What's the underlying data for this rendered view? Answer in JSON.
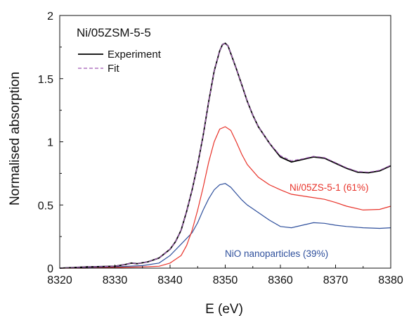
{
  "chart_data": {
    "type": "line",
    "title": "Ni/05ZSM-5-5",
    "xlabel": "E (eV)",
    "ylabel": "Normalised absorption",
    "xlim": [
      8320,
      8380
    ],
    "ylim": [
      0,
      2
    ],
    "xticks": [
      8320,
      8330,
      8340,
      8350,
      8360,
      8370,
      8380
    ],
    "xtick_labels": [
      "8320",
      "8330",
      "8340",
      "8350",
      "8360",
      "8370",
      "8380"
    ],
    "yticks": [
      0,
      0.5,
      1,
      1.5,
      2
    ],
    "ytick_labels": [
      "0",
      "0.5",
      "1",
      "1.5",
      "2"
    ],
    "grid": false,
    "legend_position": "top-left",
    "legend": [
      {
        "label": "Experiment",
        "color": "#000000",
        "style": "solid"
      },
      {
        "label": "Fit",
        "color": "#a05ab4",
        "style": "dashed"
      }
    ],
    "annotations": [
      {
        "text": "Ni/05ZS-5-1 (61%)",
        "color": "#e8332a",
        "series": "ni05zs"
      },
      {
        "text": "NiO nanoparticles (39%)",
        "color": "#2e4f9c",
        "series": "nio"
      }
    ],
    "series": [
      {
        "key": "experiment",
        "color": "#000000",
        "style": "solid",
        "x": [
          8320,
          8325,
          8330,
          8332,
          8333,
          8334,
          8336,
          8338,
          8340,
          8341,
          8342,
          8343,
          8344,
          8345,
          8346,
          8347,
          8348,
          8349,
          8349.5,
          8350,
          8350.5,
          8351,
          8352,
          8353,
          8354,
          8355,
          8356,
          8358,
          8360,
          8362,
          8364,
          8366,
          8368,
          8370,
          8372,
          8374,
          8376,
          8378,
          8380
        ],
        "y": [
          0.0,
          0.01,
          0.015,
          0.03,
          0.04,
          0.035,
          0.05,
          0.08,
          0.15,
          0.21,
          0.3,
          0.45,
          0.62,
          0.82,
          1.05,
          1.32,
          1.56,
          1.72,
          1.77,
          1.78,
          1.76,
          1.7,
          1.58,
          1.45,
          1.32,
          1.21,
          1.12,
          0.99,
          0.88,
          0.84,
          0.86,
          0.88,
          0.87,
          0.83,
          0.79,
          0.76,
          0.755,
          0.77,
          0.81
        ]
      },
      {
        "key": "fit",
        "color": "#a05ab4",
        "style": "dashed",
        "x": [
          8320,
          8325,
          8330,
          8332,
          8333,
          8334,
          8336,
          8338,
          8340,
          8341,
          8342,
          8343,
          8344,
          8345,
          8346,
          8347,
          8348,
          8349,
          8349.5,
          8350,
          8350.5,
          8351,
          8352,
          8353,
          8354,
          8355,
          8356,
          8358,
          8360,
          8362,
          8364,
          8366,
          8368,
          8370,
          8372,
          8374,
          8376,
          8378,
          8380
        ],
        "y": [
          0.0,
          0.01,
          0.015,
          0.03,
          0.04,
          0.035,
          0.05,
          0.08,
          0.15,
          0.21,
          0.3,
          0.45,
          0.62,
          0.82,
          1.05,
          1.32,
          1.56,
          1.72,
          1.77,
          1.78,
          1.76,
          1.7,
          1.58,
          1.45,
          1.32,
          1.21,
          1.12,
          0.99,
          0.89,
          0.85,
          0.865,
          0.885,
          0.875,
          0.835,
          0.795,
          0.765,
          0.76,
          0.775,
          0.815
        ]
      },
      {
        "key": "ni05zs",
        "color": "#e8332a",
        "style": "solid",
        "x": [
          8320,
          8325,
          8330,
          8335,
          8338,
          8340,
          8342,
          8343,
          8344,
          8345,
          8346,
          8347,
          8348,
          8349,
          8350,
          8351,
          8352,
          8353,
          8354,
          8356,
          8358,
          8360,
          8362,
          8365,
          8368,
          8370,
          8372,
          8375,
          8378,
          8380
        ],
        "y": [
          0.0,
          0.0,
          0.005,
          0.01,
          0.015,
          0.04,
          0.1,
          0.18,
          0.3,
          0.46,
          0.64,
          0.84,
          1.0,
          1.1,
          1.12,
          1.09,
          1.0,
          0.9,
          0.82,
          0.72,
          0.66,
          0.62,
          0.585,
          0.565,
          0.545,
          0.52,
          0.49,
          0.46,
          0.465,
          0.49
        ]
      },
      {
        "key": "nio",
        "color": "#2e4f9c",
        "style": "solid",
        "x": [
          8320,
          8325,
          8330,
          8335,
          8338,
          8340,
          8342,
          8344,
          8345,
          8346,
          8347,
          8348,
          8349,
          8350,
          8351,
          8352,
          8353,
          8354,
          8355,
          8356,
          8358,
          8360,
          8362,
          8364,
          8366,
          8368,
          8370,
          8372,
          8375,
          8378,
          8380
        ],
        "y": [
          0.0,
          0.005,
          0.01,
          0.02,
          0.04,
          0.1,
          0.19,
          0.28,
          0.36,
          0.46,
          0.55,
          0.62,
          0.66,
          0.67,
          0.64,
          0.59,
          0.54,
          0.5,
          0.47,
          0.44,
          0.38,
          0.33,
          0.32,
          0.34,
          0.36,
          0.355,
          0.34,
          0.33,
          0.32,
          0.315,
          0.32
        ]
      }
    ]
  }
}
